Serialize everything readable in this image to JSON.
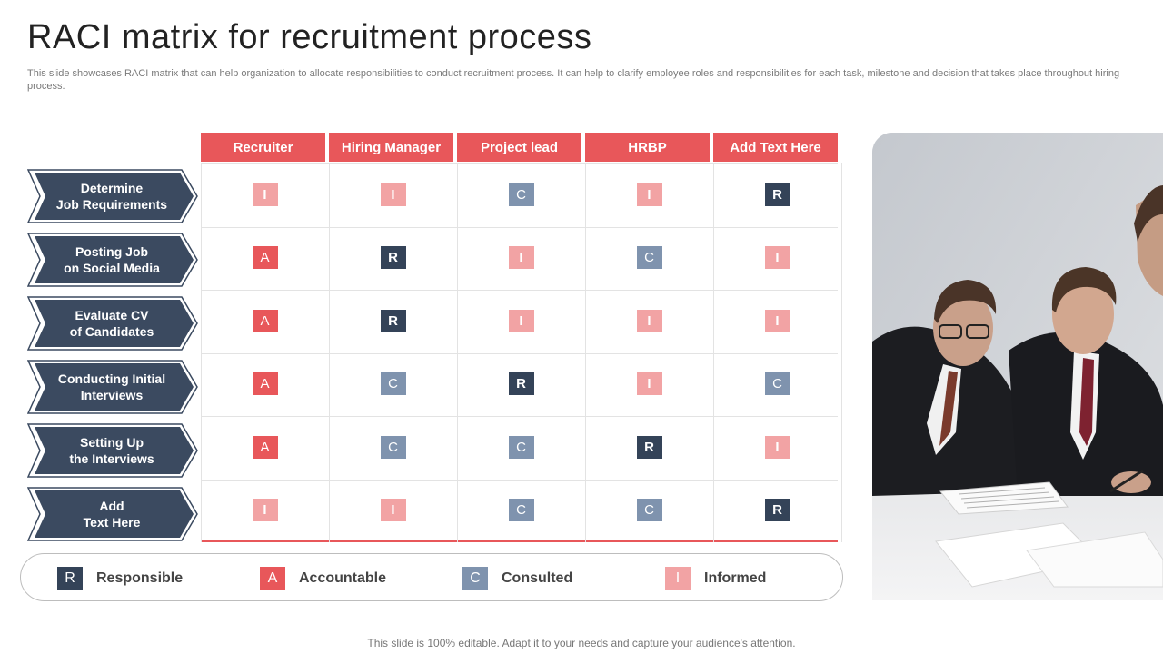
{
  "title": "RACI matrix for recruitment process",
  "subtitle": "This slide showcases RACI matrix that can help organization to allocate responsibilities to conduct recruitment process. It can help to clarify employee roles and responsibilities for each task, milestone and decision that takes place throughout hiring process.",
  "columns": [
    "Recruiter",
    "Hiring Manager",
    "Project lead",
    "HRBP",
    "Add Text Here"
  ],
  "rows": [
    {
      "label": "Determine\nJob Requirements",
      "cells": [
        "I",
        "I",
        "C",
        "I",
        "R"
      ]
    },
    {
      "label": "Posting Job\non Social Media",
      "cells": [
        "A",
        "R",
        "I",
        "C",
        "I"
      ]
    },
    {
      "label": "Evaluate CV\nof Candidates",
      "cells": [
        "A",
        "R",
        "I",
        "I",
        "I"
      ]
    },
    {
      "label": "Conducting Initial\nInterviews",
      "cells": [
        "A",
        "C",
        "R",
        "I",
        "C"
      ]
    },
    {
      "label": "Setting Up\nthe Interviews",
      "cells": [
        "A",
        "C",
        "C",
        "R",
        "I"
      ]
    },
    {
      "label": "Add\nText Here",
      "cells": [
        "I",
        "I",
        "C",
        "C",
        "R"
      ]
    }
  ],
  "legend": [
    {
      "letter": "R",
      "label": "Responsible"
    },
    {
      "letter": "A",
      "label": "Accountable"
    },
    {
      "letter": "C",
      "label": "Consulted"
    },
    {
      "letter": "I",
      "label": "Informed"
    }
  ],
  "colors": {
    "R": "#344358",
    "A": "#e8575a",
    "C": "#7f93ae",
    "I": "#f2a3a4",
    "row_label": "#3b4a60"
  },
  "footer": "This slide is 100% editable. Adapt it to your needs and capture your audience's attention."
}
